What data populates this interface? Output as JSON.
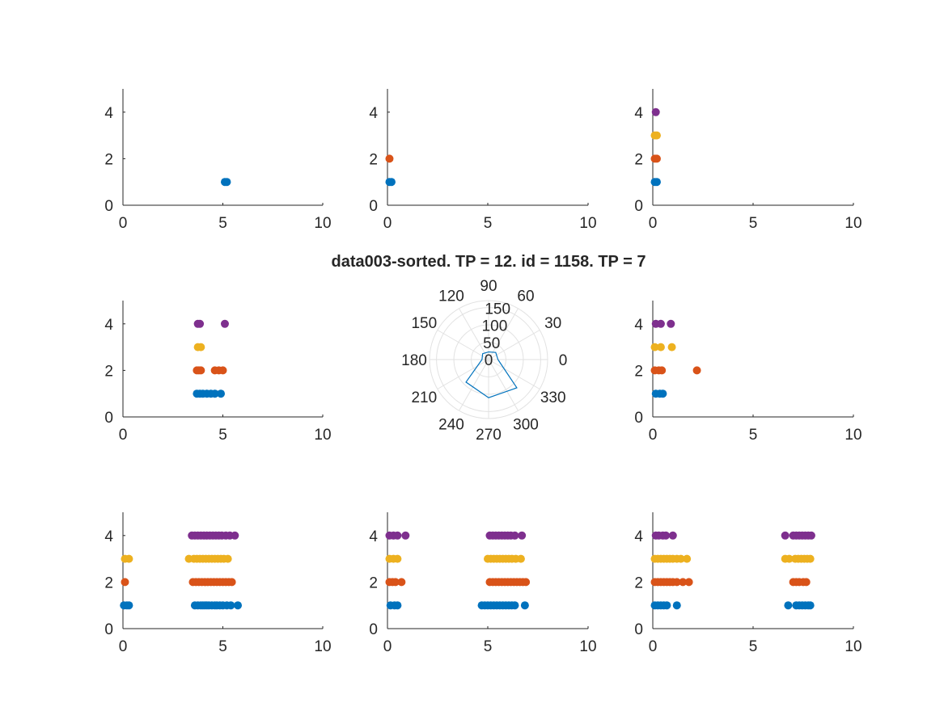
{
  "figure": {
    "colors": {
      "blue": "#0072BD",
      "orange": "#D95319",
      "yellow": "#EDB120",
      "purple": "#7E2F8E",
      "axis": "#262626",
      "grid": "#e2e2e2",
      "polar_line": "#0072BD"
    }
  },
  "chart_data": [
    {
      "type": "scatter",
      "subplot": "row1-col1",
      "xlim": [
        0,
        10
      ],
      "ylim": [
        0,
        5
      ],
      "xticks": [
        0,
        5,
        10
      ],
      "yticks": [
        0,
        2,
        4
      ],
      "xlabel": "",
      "ylabel": "",
      "title": "",
      "series": [
        {
          "color": "#0072BD",
          "y": 1,
          "x": [
            5.1,
            5.2
          ]
        }
      ]
    },
    {
      "type": "scatter",
      "subplot": "row1-col2",
      "xlim": [
        0,
        10
      ],
      "ylim": [
        0,
        5
      ],
      "xticks": [
        0,
        5,
        10
      ],
      "yticks": [
        0,
        2,
        4
      ],
      "xlabel": "",
      "ylabel": "",
      "title": "",
      "series": [
        {
          "color": "#0072BD",
          "y": 1,
          "x": [
            0.1,
            0.2
          ]
        },
        {
          "color": "#D95319",
          "y": 2,
          "x": [
            0.1
          ]
        }
      ]
    },
    {
      "type": "scatter",
      "subplot": "row1-col3",
      "xlim": [
        0,
        10
      ],
      "ylim": [
        0,
        5
      ],
      "xticks": [
        0,
        5,
        10
      ],
      "yticks": [
        0,
        2,
        4
      ],
      "xlabel": "",
      "ylabel": "",
      "title": "",
      "series": [
        {
          "color": "#0072BD",
          "y": 1,
          "x": [
            0.1,
            0.2
          ]
        },
        {
          "color": "#D95319",
          "y": 2,
          "x": [
            0.1,
            0.2
          ]
        },
        {
          "color": "#EDB120",
          "y": 3,
          "x": [
            0.1,
            0.2
          ]
        },
        {
          "color": "#7E2F8E",
          "y": 4,
          "x": [
            0.15
          ]
        }
      ]
    },
    {
      "type": "scatter",
      "subplot": "row2-col1",
      "xlim": [
        0,
        10
      ],
      "ylim": [
        0,
        5
      ],
      "xticks": [
        0,
        5,
        10
      ],
      "yticks": [
        0,
        2,
        4
      ],
      "xlabel": "",
      "ylabel": "",
      "title": "",
      "series": [
        {
          "color": "#0072BD",
          "y": 1,
          "x": [
            3.7,
            3.85,
            4.0,
            4.2,
            4.4,
            4.6,
            4.9
          ]
        },
        {
          "color": "#D95319",
          "y": 2,
          "x": [
            3.7,
            3.8,
            3.9,
            4.6,
            4.8,
            5.0
          ]
        },
        {
          "color": "#EDB120",
          "y": 3,
          "x": [
            3.75,
            3.9
          ]
        },
        {
          "color": "#7E2F8E",
          "y": 4,
          "x": [
            3.75,
            3.85,
            5.1
          ]
        }
      ]
    },
    {
      "type": "polar",
      "subplot": "row2-col2",
      "title": "data003-sorted. TP = 12. id = 1158. TP = 7",
      "theta_ticks": [
        0,
        30,
        60,
        90,
        120,
        150,
        180,
        210,
        240,
        270,
        300,
        330
      ],
      "r_ticks": [
        0,
        50,
        100,
        150
      ],
      "rlim": [
        0,
        170
      ],
      "series": [
        {
          "color": "#0072BD",
          "theta": [
            0,
            45,
            90,
            135,
            180,
            225,
            270,
            315,
            360
          ],
          "r": [
            27,
            29,
            22,
            24,
            19,
            92,
            110,
            115,
            27
          ]
        }
      ]
    },
    {
      "type": "scatter",
      "subplot": "row2-col3",
      "xlim": [
        0,
        10
      ],
      "ylim": [
        0,
        5
      ],
      "xticks": [
        0,
        5,
        10
      ],
      "yticks": [
        0,
        2,
        4
      ],
      "xlabel": "",
      "ylabel": "",
      "title": "",
      "series": [
        {
          "color": "#0072BD",
          "y": 1,
          "x": [
            0.15,
            0.35,
            0.5
          ]
        },
        {
          "color": "#D95319",
          "y": 2,
          "x": [
            0.1,
            0.3,
            0.45,
            2.2
          ]
        },
        {
          "color": "#EDB120",
          "y": 3,
          "x": [
            0.1,
            0.4,
            0.95
          ]
        },
        {
          "color": "#7E2F8E",
          "y": 4,
          "x": [
            0.15,
            0.4,
            0.9
          ]
        }
      ]
    },
    {
      "type": "scatter",
      "subplot": "row3-col1",
      "xlim": [
        0,
        10
      ],
      "ylim": [
        0,
        5
      ],
      "xticks": [
        0,
        5,
        10
      ],
      "yticks": [
        0,
        2,
        4
      ],
      "xlabel": "",
      "ylabel": "",
      "title": "",
      "series": [
        {
          "color": "#0072BD",
          "y": 1,
          "x": [
            0.05,
            0.2,
            0.3,
            3.6,
            3.75,
            3.9,
            4.0,
            4.1,
            4.2,
            4.3,
            4.45,
            4.6,
            4.7,
            4.85,
            5.0,
            5.2,
            5.4,
            5.75
          ]
        },
        {
          "color": "#D95319",
          "y": 2,
          "x": [
            0.1,
            3.5,
            3.65,
            3.8,
            3.95,
            4.1,
            4.25,
            4.4,
            4.55,
            4.7,
            4.85,
            5.0,
            5.15,
            5.3,
            5.45
          ]
        },
        {
          "color": "#EDB120",
          "y": 3,
          "x": [
            0.1,
            0.3,
            3.3,
            3.55,
            3.7,
            3.85,
            4.0,
            4.15,
            4.3,
            4.45,
            4.6,
            4.75,
            4.9,
            5.05,
            5.25
          ]
        },
        {
          "color": "#7E2F8E",
          "y": 4,
          "x": [
            3.45,
            3.6,
            3.75,
            3.9,
            4.05,
            4.2,
            4.35,
            4.5,
            4.65,
            4.8,
            4.95,
            5.15,
            5.35,
            5.6
          ]
        }
      ]
    },
    {
      "type": "scatter",
      "subplot": "row3-col2",
      "xlim": [
        0,
        10
      ],
      "ylim": [
        0,
        5
      ],
      "xticks": [
        0,
        5,
        10
      ],
      "yticks": [
        0,
        2,
        4
      ],
      "xlabel": "",
      "ylabel": "",
      "title": "",
      "series": [
        {
          "color": "#0072BD",
          "y": 1,
          "x": [
            0.15,
            0.35,
            0.5,
            4.7,
            4.85,
            5.0,
            5.15,
            5.3,
            5.45,
            5.6,
            5.75,
            5.9,
            6.05,
            6.2,
            6.35,
            6.85
          ]
        },
        {
          "color": "#D95319",
          "y": 2,
          "x": [
            0.1,
            0.25,
            0.4,
            0.7,
            5.1,
            5.25,
            5.4,
            5.55,
            5.7,
            5.85,
            6.0,
            6.15,
            6.3,
            6.45,
            6.6,
            6.75,
            6.9
          ]
        },
        {
          "color": "#EDB120",
          "y": 3,
          "x": [
            0.1,
            0.3,
            0.5,
            5.0,
            5.15,
            5.3,
            5.45,
            5.6,
            5.75,
            5.9,
            6.05,
            6.2,
            6.4,
            6.65
          ]
        },
        {
          "color": "#7E2F8E",
          "y": 4,
          "x": [
            0.1,
            0.3,
            0.5,
            0.9,
            5.1,
            5.25,
            5.4,
            5.55,
            5.7,
            5.85,
            6.0,
            6.15,
            6.35,
            6.7
          ]
        }
      ]
    },
    {
      "type": "scatter",
      "subplot": "row3-col3",
      "xlim": [
        0,
        10
      ],
      "ylim": [
        0,
        5
      ],
      "xticks": [
        0,
        5,
        10
      ],
      "yticks": [
        0,
        2,
        4
      ],
      "xlabel": "",
      "ylabel": "",
      "title": "",
      "series": [
        {
          "color": "#0072BD",
          "y": 1,
          "x": [
            0.1,
            0.25,
            0.4,
            0.55,
            0.7,
            1.2,
            6.75,
            7.15,
            7.3,
            7.45,
            7.6,
            7.75,
            7.85
          ]
        },
        {
          "color": "#D95319",
          "y": 2,
          "x": [
            0.1,
            0.25,
            0.4,
            0.55,
            0.7,
            0.85,
            1.0,
            1.2,
            1.5,
            1.8,
            7.0,
            7.15,
            7.3,
            7.5,
            7.65
          ]
        },
        {
          "color": "#EDB120",
          "y": 3,
          "x": [
            0.1,
            0.25,
            0.4,
            0.55,
            0.7,
            0.85,
            1.0,
            1.2,
            1.4,
            1.7,
            6.6,
            6.8,
            7.1,
            7.25,
            7.4,
            7.55,
            7.7,
            7.85
          ]
        },
        {
          "color": "#7E2F8E",
          "y": 4,
          "x": [
            0.15,
            0.3,
            0.5,
            0.65,
            1.0,
            6.6,
            7.0,
            7.15,
            7.3,
            7.45,
            7.6,
            7.75,
            7.9
          ]
        }
      ]
    }
  ]
}
